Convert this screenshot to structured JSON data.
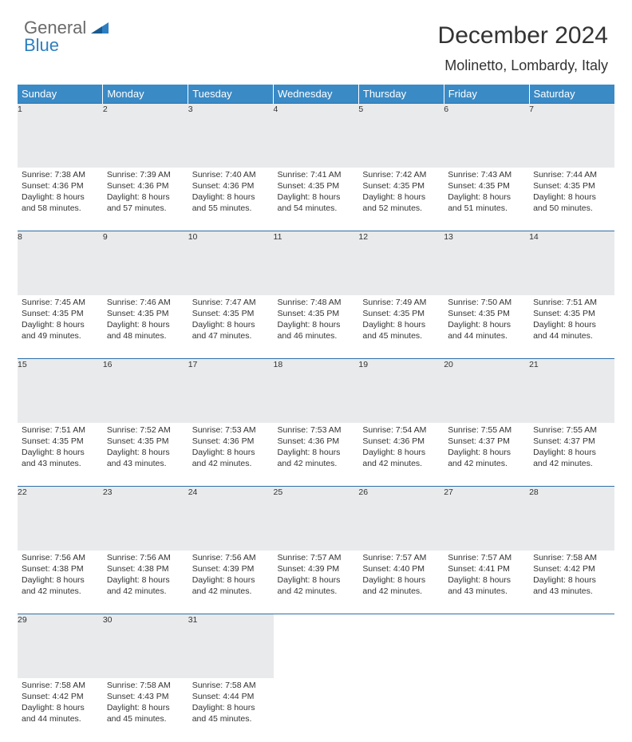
{
  "logo": {
    "text1": "General",
    "text2": "Blue",
    "icon_color": "#2d7fc1"
  },
  "title": "December 2024",
  "location": "Molinetto, Lombardy, Italy",
  "day_headers": [
    "Sunday",
    "Monday",
    "Tuesday",
    "Wednesday",
    "Thursday",
    "Friday",
    "Saturday"
  ],
  "colors": {
    "header_bg": "#3a8ac6",
    "header_text": "#ffffff",
    "daynum_bg": "#e8eaec",
    "border": "#2f6fa8",
    "text": "#333333",
    "logo_gray": "#6a6a6a",
    "logo_blue": "#2d7fc1"
  },
  "weeks": [
    [
      {
        "num": "1",
        "sunrise": "Sunrise: 7:38 AM",
        "sunset": "Sunset: 4:36 PM",
        "daylight1": "Daylight: 8 hours",
        "daylight2": "and 58 minutes."
      },
      {
        "num": "2",
        "sunrise": "Sunrise: 7:39 AM",
        "sunset": "Sunset: 4:36 PM",
        "daylight1": "Daylight: 8 hours",
        "daylight2": "and 57 minutes."
      },
      {
        "num": "3",
        "sunrise": "Sunrise: 7:40 AM",
        "sunset": "Sunset: 4:36 PM",
        "daylight1": "Daylight: 8 hours",
        "daylight2": "and 55 minutes."
      },
      {
        "num": "4",
        "sunrise": "Sunrise: 7:41 AM",
        "sunset": "Sunset: 4:35 PM",
        "daylight1": "Daylight: 8 hours",
        "daylight2": "and 54 minutes."
      },
      {
        "num": "5",
        "sunrise": "Sunrise: 7:42 AM",
        "sunset": "Sunset: 4:35 PM",
        "daylight1": "Daylight: 8 hours",
        "daylight2": "and 52 minutes."
      },
      {
        "num": "6",
        "sunrise": "Sunrise: 7:43 AM",
        "sunset": "Sunset: 4:35 PM",
        "daylight1": "Daylight: 8 hours",
        "daylight2": "and 51 minutes."
      },
      {
        "num": "7",
        "sunrise": "Sunrise: 7:44 AM",
        "sunset": "Sunset: 4:35 PM",
        "daylight1": "Daylight: 8 hours",
        "daylight2": "and 50 minutes."
      }
    ],
    [
      {
        "num": "8",
        "sunrise": "Sunrise: 7:45 AM",
        "sunset": "Sunset: 4:35 PM",
        "daylight1": "Daylight: 8 hours",
        "daylight2": "and 49 minutes."
      },
      {
        "num": "9",
        "sunrise": "Sunrise: 7:46 AM",
        "sunset": "Sunset: 4:35 PM",
        "daylight1": "Daylight: 8 hours",
        "daylight2": "and 48 minutes."
      },
      {
        "num": "10",
        "sunrise": "Sunrise: 7:47 AM",
        "sunset": "Sunset: 4:35 PM",
        "daylight1": "Daylight: 8 hours",
        "daylight2": "and 47 minutes."
      },
      {
        "num": "11",
        "sunrise": "Sunrise: 7:48 AM",
        "sunset": "Sunset: 4:35 PM",
        "daylight1": "Daylight: 8 hours",
        "daylight2": "and 46 minutes."
      },
      {
        "num": "12",
        "sunrise": "Sunrise: 7:49 AM",
        "sunset": "Sunset: 4:35 PM",
        "daylight1": "Daylight: 8 hours",
        "daylight2": "and 45 minutes."
      },
      {
        "num": "13",
        "sunrise": "Sunrise: 7:50 AM",
        "sunset": "Sunset: 4:35 PM",
        "daylight1": "Daylight: 8 hours",
        "daylight2": "and 44 minutes."
      },
      {
        "num": "14",
        "sunrise": "Sunrise: 7:51 AM",
        "sunset": "Sunset: 4:35 PM",
        "daylight1": "Daylight: 8 hours",
        "daylight2": "and 44 minutes."
      }
    ],
    [
      {
        "num": "15",
        "sunrise": "Sunrise: 7:51 AM",
        "sunset": "Sunset: 4:35 PM",
        "daylight1": "Daylight: 8 hours",
        "daylight2": "and 43 minutes."
      },
      {
        "num": "16",
        "sunrise": "Sunrise: 7:52 AM",
        "sunset": "Sunset: 4:35 PM",
        "daylight1": "Daylight: 8 hours",
        "daylight2": "and 43 minutes."
      },
      {
        "num": "17",
        "sunrise": "Sunrise: 7:53 AM",
        "sunset": "Sunset: 4:36 PM",
        "daylight1": "Daylight: 8 hours",
        "daylight2": "and 42 minutes."
      },
      {
        "num": "18",
        "sunrise": "Sunrise: 7:53 AM",
        "sunset": "Sunset: 4:36 PM",
        "daylight1": "Daylight: 8 hours",
        "daylight2": "and 42 minutes."
      },
      {
        "num": "19",
        "sunrise": "Sunrise: 7:54 AM",
        "sunset": "Sunset: 4:36 PM",
        "daylight1": "Daylight: 8 hours",
        "daylight2": "and 42 minutes."
      },
      {
        "num": "20",
        "sunrise": "Sunrise: 7:55 AM",
        "sunset": "Sunset: 4:37 PM",
        "daylight1": "Daylight: 8 hours",
        "daylight2": "and 42 minutes."
      },
      {
        "num": "21",
        "sunrise": "Sunrise: 7:55 AM",
        "sunset": "Sunset: 4:37 PM",
        "daylight1": "Daylight: 8 hours",
        "daylight2": "and 42 minutes."
      }
    ],
    [
      {
        "num": "22",
        "sunrise": "Sunrise: 7:56 AM",
        "sunset": "Sunset: 4:38 PM",
        "daylight1": "Daylight: 8 hours",
        "daylight2": "and 42 minutes."
      },
      {
        "num": "23",
        "sunrise": "Sunrise: 7:56 AM",
        "sunset": "Sunset: 4:38 PM",
        "daylight1": "Daylight: 8 hours",
        "daylight2": "and 42 minutes."
      },
      {
        "num": "24",
        "sunrise": "Sunrise: 7:56 AM",
        "sunset": "Sunset: 4:39 PM",
        "daylight1": "Daylight: 8 hours",
        "daylight2": "and 42 minutes."
      },
      {
        "num": "25",
        "sunrise": "Sunrise: 7:57 AM",
        "sunset": "Sunset: 4:39 PM",
        "daylight1": "Daylight: 8 hours",
        "daylight2": "and 42 minutes."
      },
      {
        "num": "26",
        "sunrise": "Sunrise: 7:57 AM",
        "sunset": "Sunset: 4:40 PM",
        "daylight1": "Daylight: 8 hours",
        "daylight2": "and 42 minutes."
      },
      {
        "num": "27",
        "sunrise": "Sunrise: 7:57 AM",
        "sunset": "Sunset: 4:41 PM",
        "daylight1": "Daylight: 8 hours",
        "daylight2": "and 43 minutes."
      },
      {
        "num": "28",
        "sunrise": "Sunrise: 7:58 AM",
        "sunset": "Sunset: 4:42 PM",
        "daylight1": "Daylight: 8 hours",
        "daylight2": "and 43 minutes."
      }
    ],
    [
      {
        "num": "29",
        "sunrise": "Sunrise: 7:58 AM",
        "sunset": "Sunset: 4:42 PM",
        "daylight1": "Daylight: 8 hours",
        "daylight2": "and 44 minutes."
      },
      {
        "num": "30",
        "sunrise": "Sunrise: 7:58 AM",
        "sunset": "Sunset: 4:43 PM",
        "daylight1": "Daylight: 8 hours",
        "daylight2": "and 45 minutes."
      },
      {
        "num": "31",
        "sunrise": "Sunrise: 7:58 AM",
        "sunset": "Sunset: 4:44 PM",
        "daylight1": "Daylight: 8 hours",
        "daylight2": "and 45 minutes."
      },
      null,
      null,
      null,
      null
    ]
  ]
}
